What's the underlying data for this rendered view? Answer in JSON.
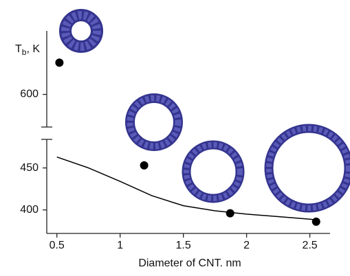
{
  "chart_data": {
    "type": "scatter",
    "ylabel": {
      "main": "T",
      "sub": "b",
      "rest": ", K"
    },
    "xlabel": "Diameter of CNT. nm",
    "xlim": [
      0.42,
      2.66
    ],
    "xticks": [
      0.5,
      1.0,
      1.5,
      2.0,
      2.5
    ],
    "y_segments": [
      {
        "ylim": [
          372,
          484
        ],
        "yticks": [
          400,
          450
        ]
      },
      {
        "ylim": [
          561,
          676
        ],
        "yticks": [
          600
        ]
      }
    ],
    "points": {
      "color": "#000000",
      "x": [
        0.52,
        1.19,
        1.87,
        2.55
      ],
      "values": [
        638,
        453,
        396,
        386
      ]
    },
    "curve": {
      "color": "#000000",
      "x": [
        0.5,
        0.75,
        1.0,
        1.25,
        1.5,
        1.75,
        2.0,
        2.25,
        2.5,
        2.55
      ],
      "values": [
        463,
        450,
        434,
        417,
        405,
        399,
        395,
        392,
        389,
        388
      ]
    }
  }
}
